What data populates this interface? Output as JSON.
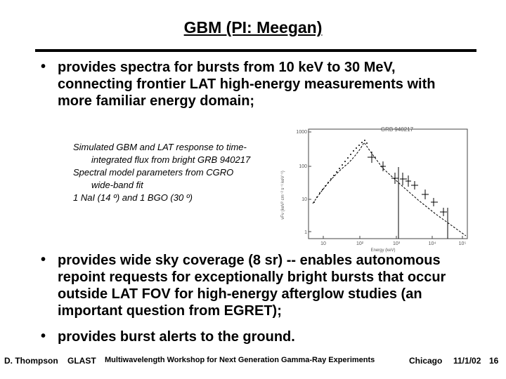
{
  "title": "GBM (PI: Meegan)",
  "bullets": [
    {
      "symbol": "•",
      "lines": [
        "provides spectra for bursts from 10 keV to 30 MeV,",
        "connecting frontier LAT high-energy measurements with",
        "more familiar energy domain;"
      ]
    },
    {
      "symbol": "•",
      "lines": [
        "provides wide sky coverage (8 sr) -- enables autonomous",
        "repoint requests for exceptionally bright bursts that occur",
        "outside LAT FOV for high-energy afterglow studies (an",
        "important question from EGRET);"
      ]
    },
    {
      "symbol": "•",
      "lines": [
        "provides burst alerts to the ground."
      ]
    }
  ],
  "caption": [
    "Simulated GBM and LAT response to time-",
    "integrated flux from bright GRB 940217",
    "Spectral model parameters from CGRO",
    "wide-band fit",
    "1 NaI (14 º) and 1 BGO (30 º)"
  ],
  "figure": {
    "title": "GRB 940217",
    "y_ticks": [
      "1000",
      "100",
      "10",
      "1"
    ],
    "x_ticks": [
      "10",
      "10²",
      "10³",
      "10⁴",
      "10⁵"
    ],
    "xlabel": "Energy (keV)",
    "ylabel": "νFν (keV² cm⁻² s⁻¹ keV⁻¹)"
  },
  "footer": {
    "author": "D. Thompson",
    "project": "GLAST",
    "event": "Multiwavelength Workshop for Next Generation Gamma-Ray Experiments",
    "place": "Chicago",
    "date": "11/1/02",
    "page": "16"
  }
}
